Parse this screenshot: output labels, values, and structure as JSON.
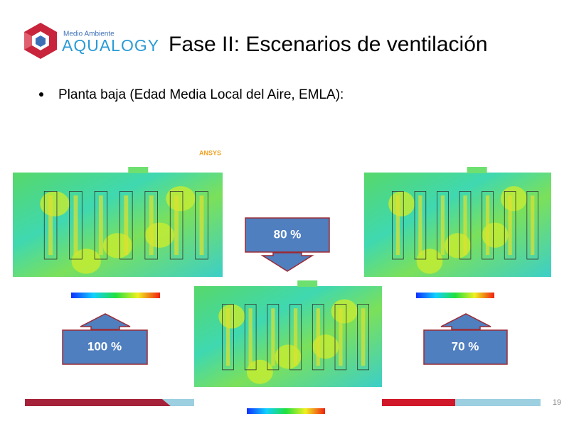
{
  "header": {
    "logo_top": "Medio Ambiente",
    "logo_brand": "AQUALOGY",
    "title": "Fase II: Escenarios de ventilación"
  },
  "bullets": [
    "Planta baja (Edad Media Local del Aire, EMLA):"
  ],
  "simulation": {
    "software": "ANSYS"
  },
  "callouts": [
    "80 %",
    "100 %",
    "70 %"
  ],
  "footer": {
    "page_number": "19"
  }
}
